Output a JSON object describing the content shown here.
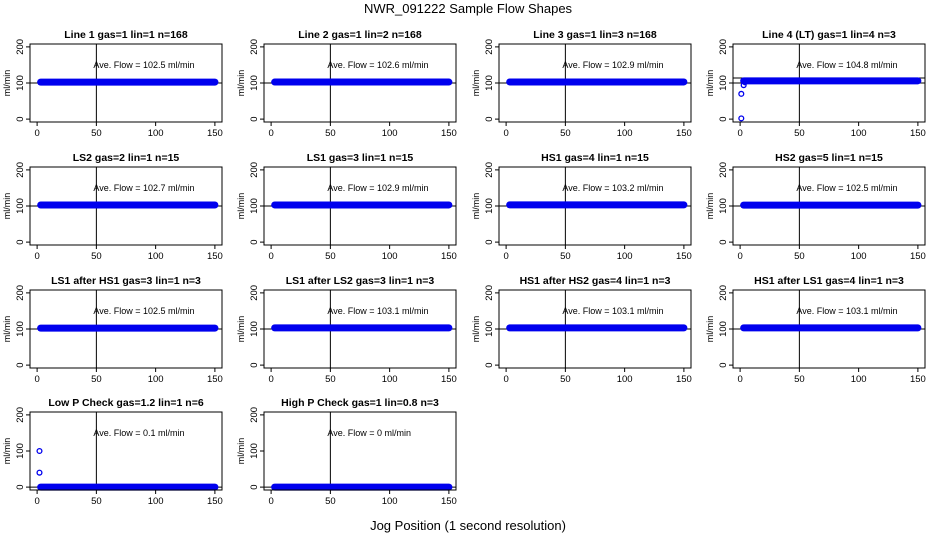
{
  "title": "NWR_091222  Sample Flow Shapes",
  "xlabel": "Jog Position (1 second resolution)",
  "ylabel": "ml/min",
  "colors": {
    "points": "#0000ee",
    "axis": "#000000"
  },
  "chart_data": [
    {
      "type": "scatter",
      "title": "Line 1 gas=1 lin=1 n=168",
      "annotation": "Ave. Flow =  102.5  ml/min",
      "flow": 102.5,
      "xlim": [
        0,
        150
      ],
      "ylim": [
        0,
        200
      ],
      "xticks": [
        0,
        50,
        100,
        150
      ],
      "yticks": [
        0,
        100,
        200
      ],
      "vline_x": 50,
      "hline_y": [
        100
      ],
      "lead_points": []
    },
    {
      "type": "scatter",
      "title": "Line 2 gas=1 lin=2 n=168",
      "annotation": "Ave. Flow =  102.6  ml/min",
      "flow": 102.6,
      "xlim": [
        0,
        150
      ],
      "ylim": [
        0,
        200
      ],
      "xticks": [
        0,
        50,
        100,
        150
      ],
      "yticks": [
        0,
        100,
        200
      ],
      "vline_x": 50,
      "hline_y": [
        100
      ],
      "lead_points": []
    },
    {
      "type": "scatter",
      "title": "Line 3 gas=1 lin=3 n=168",
      "annotation": "Ave. Flow =  102.9  ml/min",
      "flow": 102.9,
      "xlim": [
        0,
        150
      ],
      "ylim": [
        0,
        200
      ],
      "xticks": [
        0,
        50,
        100,
        150
      ],
      "yticks": [
        0,
        100,
        200
      ],
      "vline_x": 50,
      "hline_y": [
        100
      ],
      "lead_points": []
    },
    {
      "type": "scatter",
      "title": "Line 4 (LT) gas=1 lin=4 n=3",
      "annotation": "Ave. Flow =  104.8  ml/min",
      "flow": 106,
      "xlim": [
        0,
        150
      ],
      "ylim": [
        0,
        200
      ],
      "xticks": [
        0,
        50,
        100,
        150
      ],
      "yticks": [
        0,
        100,
        200
      ],
      "vline_x": 50,
      "hline_y": [
        100,
        114
      ],
      "lead_points": [
        [
          1,
          2
        ],
        [
          1,
          70
        ],
        [
          3,
          94
        ],
        [
          4,
          102
        ]
      ]
    },
    {
      "type": "scatter",
      "title": "LS2 gas=2 lin=1 n=15",
      "annotation": "Ave. Flow =  102.7  ml/min",
      "flow": 102.7,
      "xlim": [
        0,
        150
      ],
      "ylim": [
        0,
        200
      ],
      "xticks": [
        0,
        50,
        100,
        150
      ],
      "yticks": [
        0,
        100,
        200
      ],
      "vline_x": 50,
      "hline_y": [
        100
      ],
      "lead_points": []
    },
    {
      "type": "scatter",
      "title": "LS1 gas=3 lin=1 n=15",
      "annotation": "Ave. Flow =  102.9  ml/min",
      "flow": 102.9,
      "xlim": [
        0,
        150
      ],
      "ylim": [
        0,
        200
      ],
      "xticks": [
        0,
        50,
        100,
        150
      ],
      "yticks": [
        0,
        100,
        200
      ],
      "vline_x": 50,
      "hline_y": [
        100
      ],
      "lead_points": []
    },
    {
      "type": "scatter",
      "title": "HS1 gas=4 lin=1 n=15",
      "annotation": "Ave. Flow =  103.2  ml/min",
      "flow": 103.2,
      "xlim": [
        0,
        150
      ],
      "ylim": [
        0,
        200
      ],
      "xticks": [
        0,
        50,
        100,
        150
      ],
      "yticks": [
        0,
        100,
        200
      ],
      "vline_x": 50,
      "hline_y": [
        100
      ],
      "lead_points": []
    },
    {
      "type": "scatter",
      "title": "HS2 gas=5 lin=1 n=15",
      "annotation": "Ave. Flow =  102.5  ml/min",
      "flow": 102.5,
      "xlim": [
        0,
        150
      ],
      "ylim": [
        0,
        200
      ],
      "xticks": [
        0,
        50,
        100,
        150
      ],
      "yticks": [
        0,
        100,
        200
      ],
      "vline_x": 50,
      "hline_y": [
        100
      ],
      "lead_points": []
    },
    {
      "type": "scatter",
      "title": "LS1 after HS1 gas=3 lin=1 n=3",
      "annotation": "Ave. Flow =  102.5  ml/min",
      "flow": 102.5,
      "xlim": [
        0,
        150
      ],
      "ylim": [
        0,
        200
      ],
      "xticks": [
        0,
        50,
        100,
        150
      ],
      "yticks": [
        0,
        100,
        200
      ],
      "vline_x": 50,
      "hline_y": [
        100
      ],
      "lead_points": []
    },
    {
      "type": "scatter",
      "title": "LS1 after LS2 gas=3 lin=1 n=3",
      "annotation": "Ave. Flow =  103.1  ml/min",
      "flow": 103.1,
      "xlim": [
        0,
        150
      ],
      "ylim": [
        0,
        200
      ],
      "xticks": [
        0,
        50,
        100,
        150
      ],
      "yticks": [
        0,
        100,
        200
      ],
      "vline_x": 50,
      "hline_y": [
        100
      ],
      "lead_points": []
    },
    {
      "type": "scatter",
      "title": "HS1 after HS2 gas=4 lin=1 n=3",
      "annotation": "Ave. Flow =  103.1  ml/min",
      "flow": 103.1,
      "xlim": [
        0,
        150
      ],
      "ylim": [
        0,
        200
      ],
      "xticks": [
        0,
        50,
        100,
        150
      ],
      "yticks": [
        0,
        100,
        200
      ],
      "vline_x": 50,
      "hline_y": [
        100
      ],
      "lead_points": []
    },
    {
      "type": "scatter",
      "title": "HS1 after LS1 gas=4 lin=1 n=3",
      "annotation": "Ave. Flow =  103.1  ml/min",
      "flow": 103.1,
      "xlim": [
        0,
        150
      ],
      "ylim": [
        0,
        200
      ],
      "xticks": [
        0,
        50,
        100,
        150
      ],
      "yticks": [
        0,
        100,
        200
      ],
      "vline_x": 50,
      "hline_y": [
        100
      ],
      "lead_points": []
    },
    {
      "type": "scatter",
      "title": "Low P Check gas=1.2 lin=1 n=6",
      "annotation": "Ave. Flow =  0.1  ml/min",
      "flow": 0,
      "xlim": [
        0,
        150
      ],
      "ylim": [
        0,
        200
      ],
      "xticks": [
        0,
        50,
        100,
        150
      ],
      "yticks": [
        0,
        100,
        200
      ],
      "vline_x": 50,
      "hline_y": [
        0
      ],
      "lead_points": [
        [
          2,
          100
        ],
        [
          2,
          40
        ]
      ]
    },
    {
      "type": "scatter",
      "title": "High P Check gas=1 lin=0.8 n=3",
      "annotation": "Ave. Flow =  0  ml/min",
      "flow": 0,
      "xlim": [
        0,
        150
      ],
      "ylim": [
        0,
        200
      ],
      "xticks": [
        0,
        50,
        100,
        150
      ],
      "yticks": [
        0,
        100,
        200
      ],
      "vline_x": 50,
      "hline_y": [
        0
      ],
      "lead_points": []
    }
  ]
}
